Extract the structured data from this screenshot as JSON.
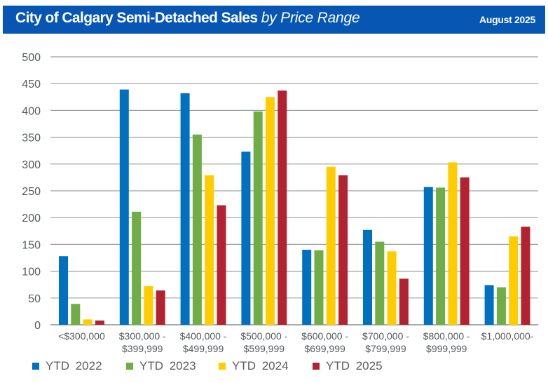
{
  "header": {
    "title_bold": "City of Calgary Semi-Detached Sales",
    "title_italic": "by Price Range",
    "date": "August 2025",
    "background_color": "#0756b4"
  },
  "chart_data": {
    "type": "bar",
    "title": "City of Calgary Semi-Detached Sales by Price Range",
    "xlabel": "",
    "ylabel": "",
    "ylim": [
      0,
      500
    ],
    "yticks": [
      0,
      50,
      100,
      150,
      200,
      250,
      300,
      350,
      400,
      450,
      500
    ],
    "grid": true,
    "legend_position": "bottom",
    "categories": [
      [
        "<$300,000"
      ],
      [
        "$300,000 -",
        "$399,999"
      ],
      [
        "$400,000 -",
        "$499,999"
      ],
      [
        "$500,000 -",
        "$599,999"
      ],
      [
        "$600,000 -",
        "$699,999"
      ],
      [
        "$700,000 -",
        "$799,999"
      ],
      [
        "$800,000 -",
        "$999,999"
      ],
      [
        "$1,000,000-"
      ]
    ],
    "series": [
      {
        "name": "YTD  2022",
        "color": "#0070c0",
        "values": [
          128,
          439,
          432,
          323,
          140,
          177,
          257,
          74
        ]
      },
      {
        "name": "YTD  2023",
        "color": "#70ad47",
        "values": [
          39,
          211,
          355,
          398,
          139,
          155,
          256,
          70
        ]
      },
      {
        "name": "YTD  2024",
        "color": "#ffcc00",
        "values": [
          10,
          72,
          279,
          425,
          295,
          137,
          303,
          165
        ]
      },
      {
        "name": "YTD  2025",
        "color": "#b22230",
        "values": [
          8,
          64,
          223,
          437,
          279,
          86,
          275,
          183
        ]
      }
    ]
  }
}
